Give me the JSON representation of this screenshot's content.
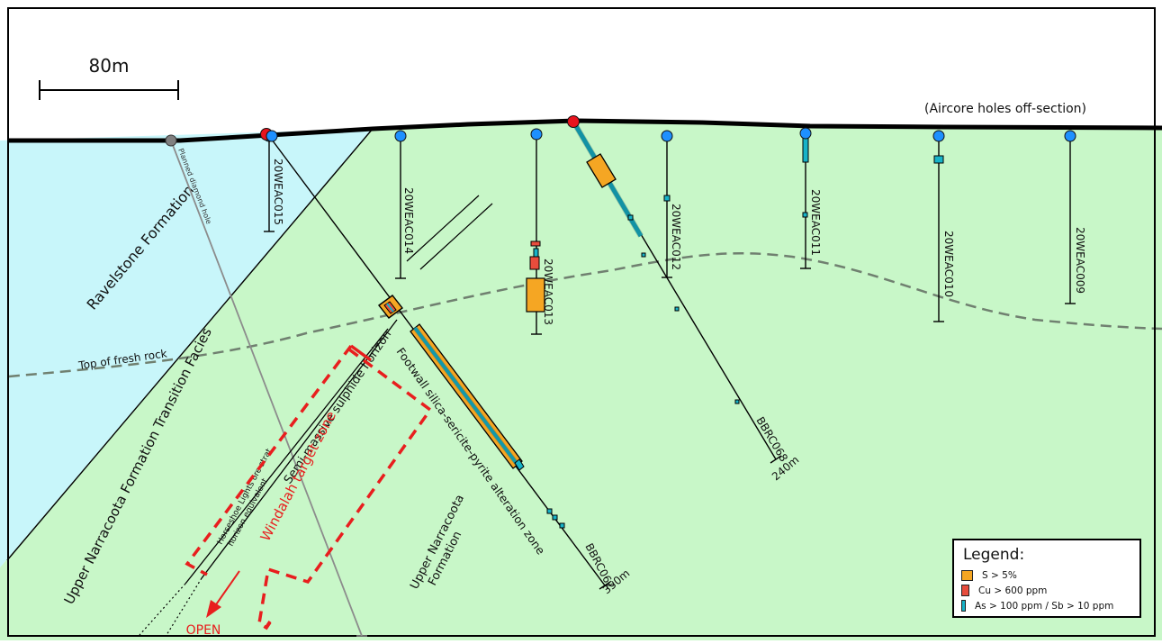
{
  "scale_bar": {
    "label": "80m"
  },
  "note": "(Aircore holes off-section)",
  "formations": {
    "ravelstone": "Ravelstone Formation",
    "transition": "Upper Narracoota Formation Transition Facies",
    "narracoota_line1": "Upper Narracoota",
    "narracoota_line2": "Formation"
  },
  "labels": {
    "fresh_rock": "Top of fresh rock",
    "planned_hole": "Planned diamond hole",
    "semi_massive": "Semi-massive sulphide horizon",
    "footwall": "Footwall silica-sericite-pyrite alteration zone",
    "horseshoe_line1": "Horseshoe Lights ore strat",
    "horseshoe_line2": "horizon equivalent",
    "target_zone": "Windalah target zone",
    "open": "OPEN"
  },
  "aircore_holes": [
    "20WEAC015",
    "20WEAC014",
    "20WEAC013",
    "20WEAC012",
    "20WEAC011",
    "20WEAC010",
    "20WEAC009"
  ],
  "rc_holes": [
    {
      "name": "BBRC062",
      "depth": "350m"
    },
    {
      "name": "BBRC068",
      "depth": "240m"
    }
  ],
  "legend": {
    "title": "Legend:",
    "items": [
      {
        "label": "S > 5%",
        "color": "#f5a623"
      },
      {
        "label": "Cu > 600 ppm",
        "color": "#e74c3c"
      },
      {
        "label": "As > 100 ppm / Sb > 10 ppm",
        "color": "#17b3c8"
      }
    ]
  },
  "colors": {
    "ravelstone_fill": "#c8f6fa",
    "narracoota_fill": "#c8f7c8",
    "aircore_collar": "#1e90ff",
    "rc_collar": "#e8141e",
    "planned_collar": "#808080",
    "target_zone": "#e81e1e",
    "fresh_rock_line": "#708070"
  }
}
